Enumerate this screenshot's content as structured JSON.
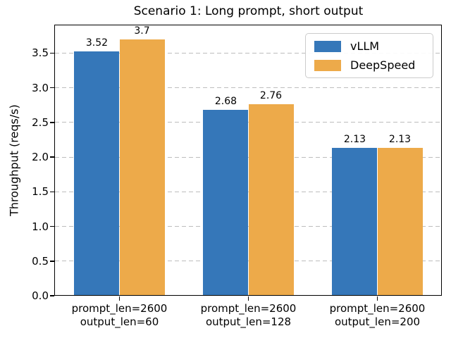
{
  "chart_data": {
    "type": "bar",
    "title": "Scenario 1: Long prompt, short output",
    "ylabel": "Throughput (reqs/s)",
    "xlabel": "",
    "categories": [
      [
        "prompt_len=2600",
        "output_len=60"
      ],
      [
        "prompt_len=2600",
        "output_len=128"
      ],
      [
        "prompt_len=2600",
        "output_len=200"
      ]
    ],
    "series": [
      {
        "name": "vLLM",
        "color": "#3577b9",
        "values": [
          3.52,
          2.68,
          2.13
        ],
        "labels": [
          "3.52",
          "2.68",
          "2.13"
        ]
      },
      {
        "name": "DeepSpeed",
        "color": "#edaa4a",
        "values": [
          3.7,
          2.76,
          2.13
        ],
        "labels": [
          "3.7",
          "2.76",
          "2.13"
        ]
      }
    ],
    "yticks": [
      "0.0",
      "0.5",
      "1.0",
      "1.5",
      "2.0",
      "2.5",
      "3.0",
      "3.5"
    ],
    "ylim": [
      0,
      3.9
    ],
    "grid": "horizontal-dashed",
    "grid_color": "#bdbdbd",
    "legend_position": "upper-right",
    "bar_width_fraction": 0.35
  }
}
